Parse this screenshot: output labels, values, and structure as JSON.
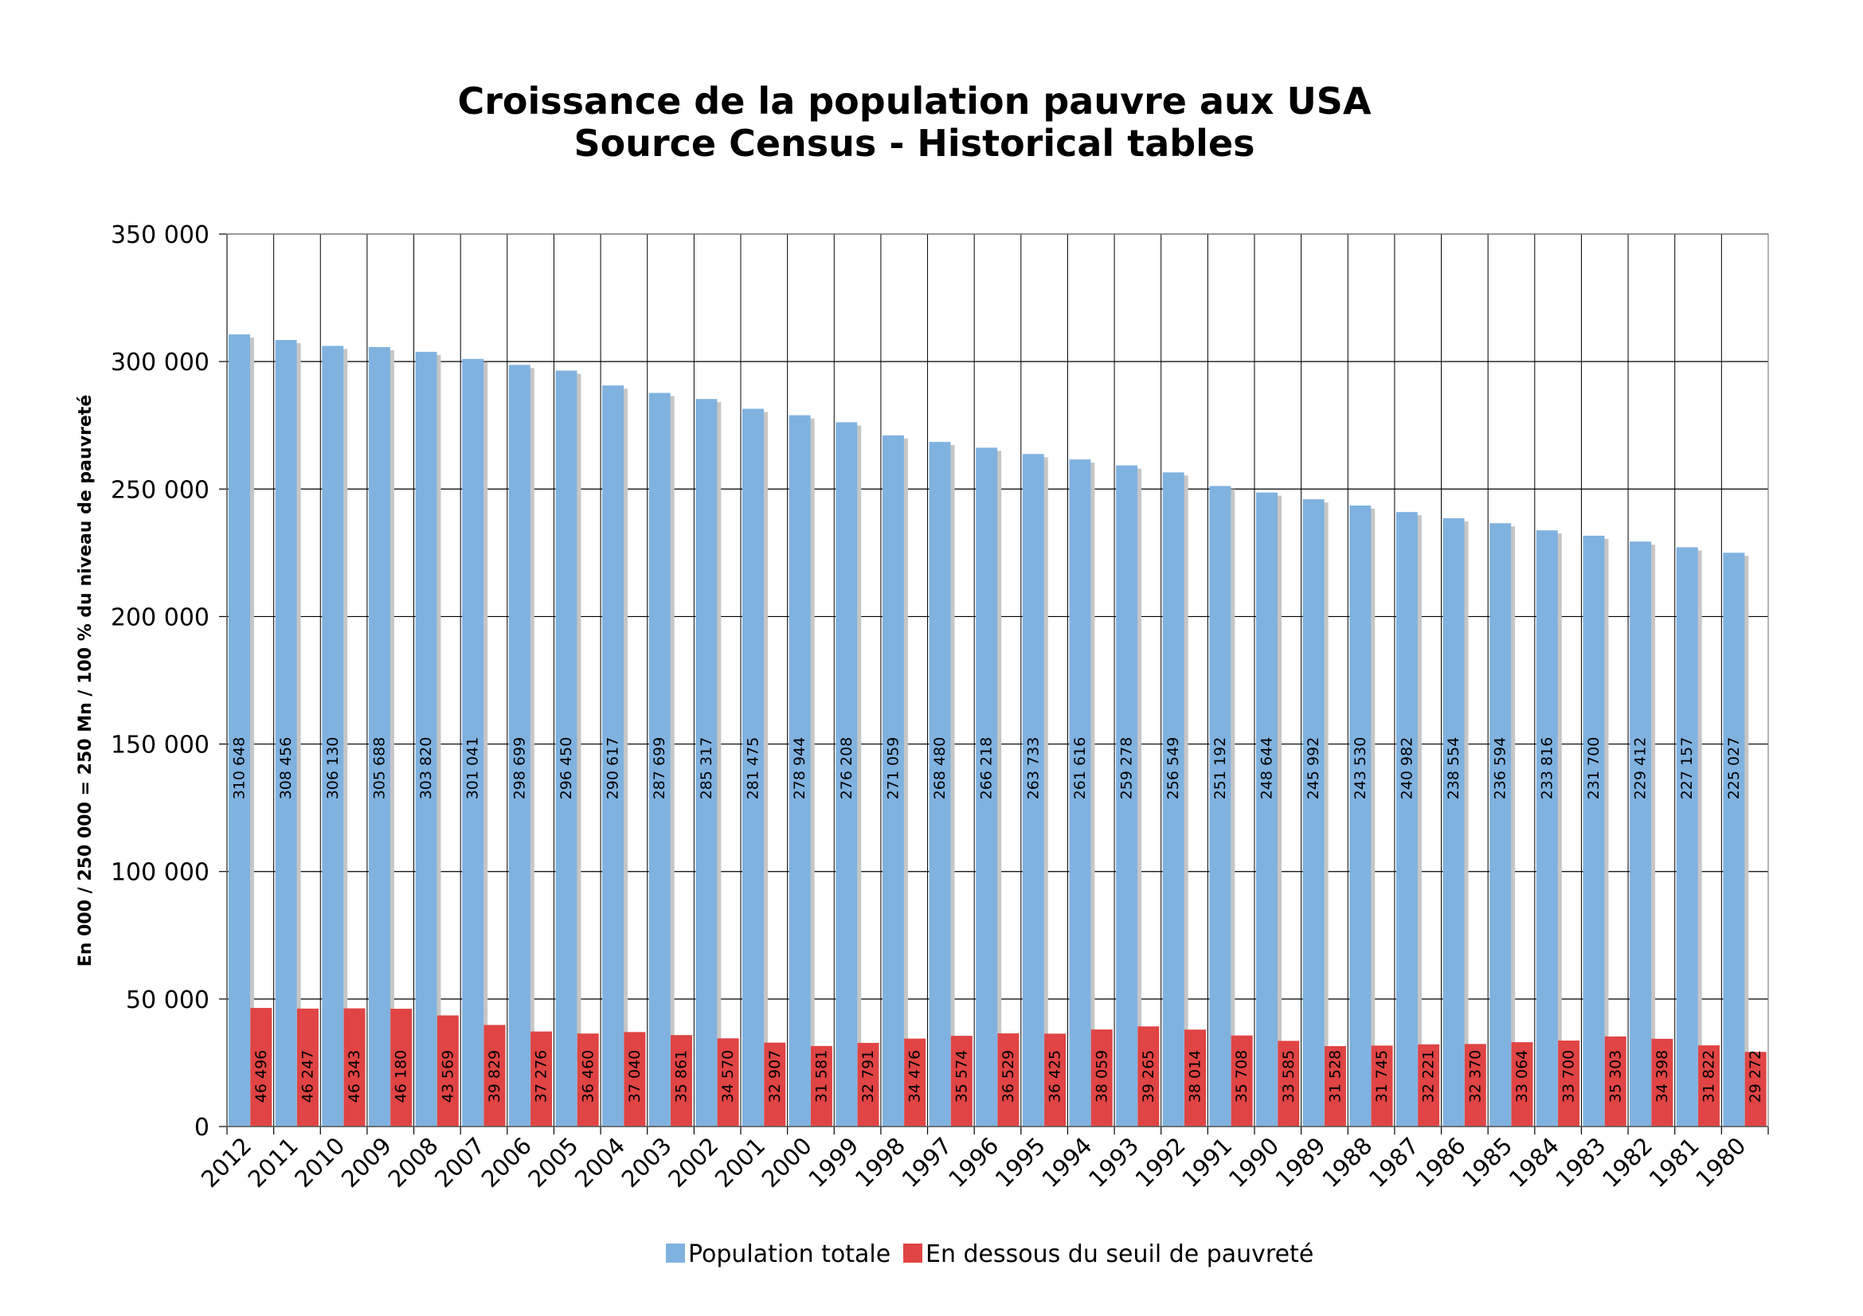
{
  "chart_data": {
    "type": "bar",
    "title_lines": [
      "Croissance de la population pauvre aux USA",
      "Source Census - Historical tables"
    ],
    "ylabel": "En 000 / 250 000 = 250 Mn / 100  % du niveau de pauvreté",
    "xlabel": "",
    "ylim": [
      0,
      350000
    ],
    "yticks": [
      0,
      50000,
      100000,
      150000,
      200000,
      250000,
      300000,
      350000
    ],
    "ytick_labels": [
      "0",
      "50 000",
      "100 000",
      "150 000",
      "200 000",
      "250 000",
      "300 000",
      "350 000"
    ],
    "grid": true,
    "legend_position": "bottom",
    "categories": [
      "2012",
      "2011",
      "2010",
      "2009",
      "2008",
      "2007",
      "2006",
      "2005",
      "2004",
      "2003",
      "2002",
      "2001",
      "2000",
      "1999",
      "1998",
      "1997",
      "1996",
      "1995",
      "1994",
      "1993",
      "1992",
      "1991",
      "1990",
      "1989",
      "1988",
      "1987",
      "1986",
      "1985",
      "1984",
      "1983",
      "1982",
      "1981",
      "1980"
    ],
    "series": [
      {
        "name": "Population totale",
        "color": "#80b2e0",
        "values": [
          310648,
          308456,
          306130,
          305688,
          303820,
          301041,
          298699,
          296450,
          290617,
          287699,
          285317,
          281475,
          278944,
          276208,
          271059,
          268480,
          266218,
          263733,
          261616,
          259278,
          256549,
          251192,
          248644,
          245992,
          243530,
          240982,
          238554,
          236594,
          233816,
          231700,
          229412,
          227157,
          225027
        ],
        "labels": [
          "310 648",
          "308 456",
          "306 130",
          "305 688",
          "303 820",
          "301 041",
          "298 699",
          "296 450",
          "290 617",
          "287 699",
          "285 317",
          "281 475",
          "278 944",
          "276 208",
          "271 059",
          "268 480",
          "266 218",
          "263 733",
          "261 616",
          "259 278",
          "256 549",
          "251 192",
          "248 644",
          "245 992",
          "243 530",
          "240 982",
          "238 554",
          "236 594",
          "233 816",
          "231 700",
          "229 412",
          "227 157",
          "225 027"
        ]
      },
      {
        "name": "En dessous du seuil de pauvreté",
        "color": "#e04444",
        "values": [
          46496,
          46247,
          46343,
          46180,
          43569,
          39829,
          37276,
          36460,
          37040,
          35861,
          34570,
          32907,
          31581,
          32791,
          34476,
          35574,
          36529,
          36425,
          38059,
          39265,
          38014,
          35708,
          33585,
          31528,
          31745,
          32221,
          32370,
          33064,
          33700,
          35303,
          34398,
          31822,
          29272
        ],
        "labels": [
          "46 496",
          "46 247",
          "46 343",
          "46 180",
          "43 569",
          "39 829",
          "37 276",
          "36 460",
          "37 040",
          "35 861",
          "34 570",
          "32 907",
          "31 581",
          "32 791",
          "34 476",
          "35 574",
          "36 529",
          "36 425",
          "38 059",
          "39 265",
          "38 014",
          "35 708",
          "33 585",
          "31 528",
          "31 745",
          "32 221",
          "32 370",
          "33 064",
          "33 700",
          "35 303",
          "34 398",
          "31 822",
          "29 272"
        ]
      }
    ]
  }
}
